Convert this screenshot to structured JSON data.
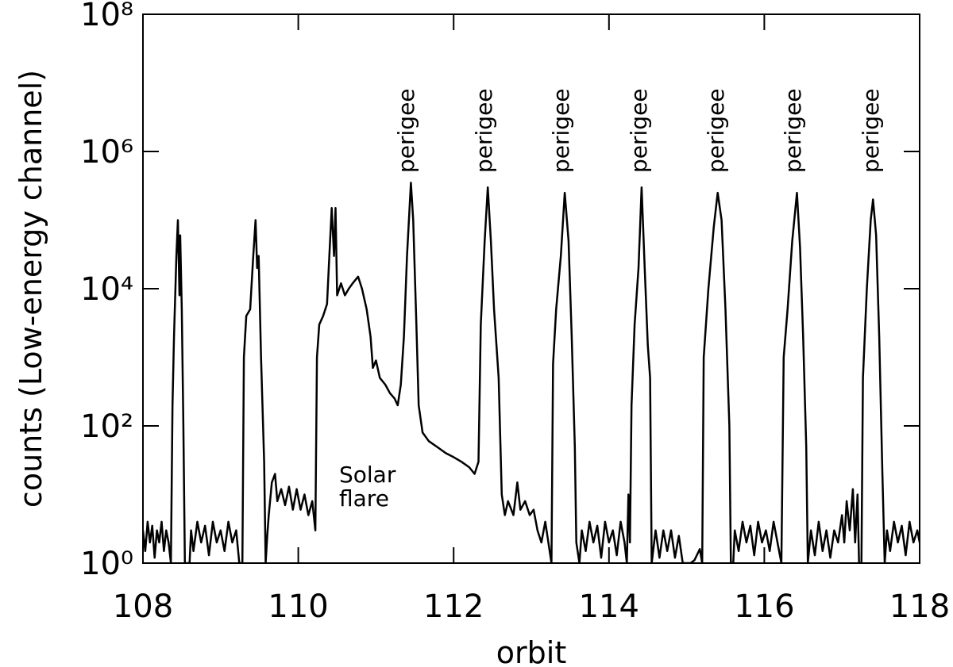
{
  "chart_data": {
    "type": "line",
    "x_label": "orbit",
    "y_label": "counts (Low-energy channel)",
    "log_y": true,
    "color": "#000000",
    "xlim": [
      108,
      118
    ],
    "xticks": [
      108,
      110,
      112,
      114,
      116,
      118
    ],
    "ylim": [
      1,
      100000000
    ],
    "yticks": [
      {
        "value": 1,
        "label": "10⁰"
      },
      {
        "value": 100,
        "label": "10²"
      },
      {
        "value": 10000,
        "label": "10⁴"
      },
      {
        "value": 1000000,
        "label": "10⁶"
      },
      {
        "value": 100000000,
        "label": "10⁸"
      }
    ],
    "perigee_labels": [
      "perigee",
      "perigee",
      "perigee",
      "perigee",
      "perigee",
      "perigee",
      "perigee"
    ],
    "flare_label": [
      "Solar",
      "flare"
    ],
    "x": [
      108.0,
      108.03,
      108.06,
      108.09,
      108.12,
      108.15,
      108.18,
      108.21,
      108.24,
      108.27,
      108.3,
      108.33,
      108.36,
      108.38,
      108.4,
      108.43,
      108.45,
      108.47,
      108.48,
      108.5,
      108.52,
      108.54,
      108.6,
      108.62,
      108.65,
      108.7,
      108.75,
      108.8,
      108.85,
      108.9,
      108.95,
      109.0,
      109.05,
      109.1,
      109.15,
      109.2,
      109.24,
      109.28,
      109.3,
      109.33,
      109.38,
      109.42,
      109.45,
      109.47,
      109.49,
      109.52,
      109.56,
      109.58,
      109.6,
      109.62,
      109.66,
      109.7,
      109.73,
      109.78,
      109.83,
      109.88,
      109.93,
      109.98,
      110.03,
      110.08,
      110.13,
      110.18,
      110.22,
      110.24,
      110.27,
      110.32,
      110.37,
      110.4,
      110.43,
      110.46,
      110.48,
      110.5,
      110.55,
      110.6,
      110.65,
      110.7,
      110.77,
      110.82,
      110.88,
      110.93,
      110.96,
      111.0,
      111.05,
      111.12,
      111.18,
      111.24,
      111.28,
      111.32,
      111.36,
      111.4,
      111.45,
      111.48,
      111.52,
      111.55,
      111.6,
      111.68,
      111.78,
      111.9,
      112.0,
      112.1,
      112.2,
      112.27,
      112.32,
      112.35,
      112.4,
      112.44,
      112.48,
      112.52,
      112.58,
      112.62,
      112.66,
      112.7,
      112.77,
      112.82,
      112.86,
      112.92,
      112.98,
      113.03,
      113.08,
      113.13,
      113.18,
      113.22,
      113.26,
      113.28,
      113.32,
      113.38,
      113.43,
      113.48,
      113.52,
      113.56,
      113.58,
      113.62,
      113.65,
      113.7,
      113.75,
      113.8,
      113.85,
      113.9,
      113.95,
      114.0,
      114.05,
      114.1,
      114.15,
      114.2,
      114.23,
      114.25,
      114.27,
      114.29,
      114.33,
      114.38,
      114.42,
      114.46,
      114.5,
      114.53,
      114.55,
      114.6,
      114.65,
      114.7,
      114.75,
      114.8,
      114.85,
      114.9,
      114.95,
      115.05,
      115.1,
      115.17,
      115.2,
      115.22,
      115.28,
      115.35,
      115.4,
      115.45,
      115.5,
      115.55,
      115.57,
      115.6,
      115.62,
      115.67,
      115.72,
      115.77,
      115.82,
      115.87,
      115.92,
      115.97,
      116.02,
      116.07,
      116.12,
      116.17,
      116.22,
      116.25,
      116.3,
      116.36,
      116.42,
      116.46,
      116.5,
      116.54,
      116.56,
      116.6,
      116.65,
      116.7,
      116.75,
      116.8,
      116.85,
      116.9,
      116.95,
      117.0,
      117.03,
      117.06,
      117.1,
      117.14,
      117.17,
      117.2,
      117.22,
      117.25,
      117.27,
      117.32,
      117.37,
      117.4,
      117.44,
      117.48,
      117.52,
      117.55,
      117.58,
      117.62,
      117.67,
      117.72,
      117.77,
      117.82,
      117.87,
      117.92,
      117.97,
      118.0
    ],
    "values": [
      3,
      1.5,
      4,
      2,
      3.5,
      1.2,
      3,
      2,
      4,
      1.5,
      3,
      2,
      1,
      200,
      2000,
      30000,
      100000,
      8000,
      60000,
      5000,
      100,
      1,
      1,
      3,
      1.5,
      4,
      2,
      3.5,
      1.3,
      4,
      2,
      3,
      1.5,
      4,
      2,
      3,
      1,
      1,
      1000,
      4000,
      5000,
      30000,
      100000,
      20000,
      30000,
      1000,
      30,
      1,
      2.5,
      5,
      15,
      20,
      8,
      12,
      7,
      13,
      6,
      12,
      6,
      10,
      5,
      8,
      3,
      1000,
      3000,
      4000,
      6000,
      30000,
      150000,
      30000,
      150000,
      8000,
      12000,
      8000,
      10000,
      12000,
      15000,
      10000,
      5000,
      2000,
      700,
      900,
      500,
      400,
      300,
      250,
      200,
      400,
      2000,
      30000,
      350000,
      100000,
      3000,
      200,
      80,
      60,
      50,
      40,
      35,
      30,
      25,
      20,
      30,
      3000,
      50000,
      300000,
      50000,
      5000,
      500,
      10,
      5,
      8,
      5,
      15,
      6,
      8,
      5,
      6,
      3,
      2,
      4,
      2,
      1,
      800,
      5000,
      30000,
      250000,
      50000,
      2000,
      50,
      2,
      1,
      3,
      1.5,
      4,
      2,
      3.5,
      1.2,
      4,
      2,
      3,
      1.3,
      4,
      2,
      1,
      10,
      2,
      200,
      3000,
      20000,
      300000,
      20000,
      1500,
      500,
      1,
      3,
      1.2,
      3,
      1.5,
      3,
      1.2,
      2.5,
      1,
      1,
      1.1,
      1.6,
      1,
      1000,
      10000,
      80000,
      250000,
      100000,
      5000,
      100,
      1,
      1,
      3,
      1.5,
      4,
      2,
      3.5,
      1.3,
      4,
      2,
      3,
      1.5,
      4,
      2,
      1,
      1000,
      5000,
      50000,
      250000,
      40000,
      2000,
      50,
      1,
      3,
      1.3,
      4,
      1.5,
      3,
      1.2,
      3,
      2,
      5,
      2,
      8,
      3,
      12,
      2,
      10,
      1,
      1,
      500,
      10000,
      100000,
      200000,
      60000,
      2000,
      20,
      1,
      3,
      1.5,
      4,
      2,
      3.5,
      1.3,
      4,
      2,
      3,
      2
    ]
  }
}
